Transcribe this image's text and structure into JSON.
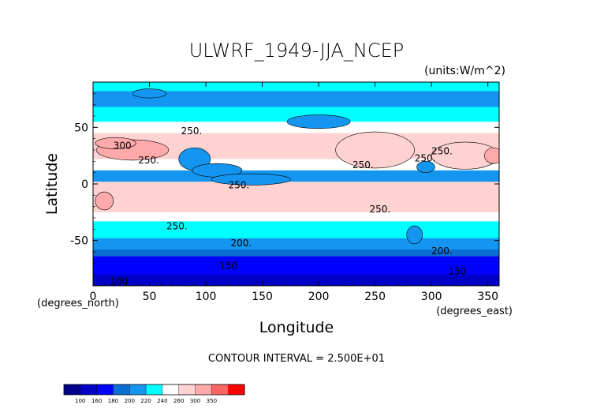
{
  "chart_data": {
    "type": "heatmap",
    "title": "ULWRF_1949-JJA_NCEP",
    "units": "(units:W/m^2)",
    "xlabel": "Longitude",
    "ylabel": "Latitude",
    "x_unit_label": "(degrees_east)",
    "y_unit_label": "(degrees_north)",
    "xlim": [
      0,
      360
    ],
    "ylim": [
      -90,
      90
    ],
    "x_ticks": [
      0,
      50,
      100,
      150,
      200,
      250,
      300,
      350
    ],
    "y_ticks": [
      50,
      0,
      -50
    ],
    "contour_interval_text": "CONTOUR INTERVAL = 2.500E+01",
    "contour_labels": [
      {
        "text": "300",
        "lon": 18,
        "lat": 31
      },
      {
        "text": "250.",
        "lon": 40,
        "lat": 18
      },
      {
        "text": "250.",
        "lon": 78,
        "lat": 44
      },
      {
        "text": "250.",
        "lon": 120,
        "lat": -4
      },
      {
        "text": "250.",
        "lon": 230,
        "lat": 14
      },
      {
        "text": "250.",
        "lon": 245,
        "lat": -25
      },
      {
        "text": "250.",
        "lon": 285,
        "lat": 20
      },
      {
        "text": "250.",
        "lon": 300,
        "lat": 26
      },
      {
        "text": "250.",
        "lon": 65,
        "lat": -40
      },
      {
        "text": "200.",
        "lon": 122,
        "lat": -55
      },
      {
        "text": "200.",
        "lon": 300,
        "lat": -62
      },
      {
        "text": "150",
        "lon": 112,
        "lat": -75
      },
      {
        "text": "150",
        "lon": 315,
        "lat": -80
      },
      {
        "text": "100",
        "lon": 15,
        "lat": -89
      }
    ],
    "colorbar": {
      "levels": [
        100,
        160,
        180,
        200,
        220,
        240,
        260,
        300,
        350
      ],
      "colors": [
        "#00008a",
        "#0000c8",
        "#0000ff",
        "#0a6ed2",
        "#1496f0",
        "#00ffff",
        "#ffffff",
        "#ffd2d2",
        "#ffaaaa",
        "#ff6464",
        "#ff0000"
      ]
    },
    "bands": [
      {
        "lat_from": 90,
        "lat_to": 82,
        "value": 225
      },
      {
        "lat_from": 82,
        "lat_to": 68,
        "value": 215
      },
      {
        "lat_from": 68,
        "lat_to": 55,
        "value": 232
      },
      {
        "lat_from": 55,
        "lat_to": 45,
        "value": 245
      },
      {
        "lat_from": 45,
        "lat_to": 35,
        "value": 262
      },
      {
        "lat_from": 35,
        "lat_to": 22,
        "value": 268
      },
      {
        "lat_from": 22,
        "lat_to": 12,
        "value": 240
      },
      {
        "lat_from": 12,
        "lat_to": 2,
        "value": 215
      },
      {
        "lat_from": 2,
        "lat_to": -10,
        "value": 262
      },
      {
        "lat_from": -10,
        "lat_to": -25,
        "value": 268
      },
      {
        "lat_from": -25,
        "lat_to": -33,
        "value": 250
      },
      {
        "lat_from": -33,
        "lat_to": -40,
        "value": 232
      },
      {
        "lat_from": -40,
        "lat_to": -48,
        "value": 222
      },
      {
        "lat_from": -48,
        "lat_to": -58,
        "value": 212
      },
      {
        "lat_from": -58,
        "lat_to": -64,
        "value": 196
      },
      {
        "lat_from": -64,
        "lat_to": -72,
        "value": 176
      },
      {
        "lat_from": -72,
        "lat_to": -80,
        "value": 164
      },
      {
        "lat_from": -80,
        "lat_to": -90,
        "value": 140
      }
    ],
    "features": [
      {
        "lon": 35,
        "lat": 30,
        "rlon": 32,
        "rlat": 9,
        "value": 305
      },
      {
        "lon": 20,
        "lat": 36,
        "rlon": 18,
        "rlat": 5,
        "value": 315
      },
      {
        "lon": 90,
        "lat": 22,
        "rlon": 14,
        "rlat": 10,
        "value": 200
      },
      {
        "lon": 110,
        "lat": 12,
        "rlon": 22,
        "rlat": 6,
        "value": 218
      },
      {
        "lon": 250,
        "lat": 30,
        "rlon": 35,
        "rlat": 16,
        "value": 272
      },
      {
        "lon": 330,
        "lat": 25,
        "rlon": 30,
        "rlat": 12,
        "value": 275
      },
      {
        "lon": 355,
        "lat": 25,
        "rlon": 8,
        "rlat": 7,
        "value": 315
      },
      {
        "lon": 10,
        "lat": -15,
        "rlon": 8,
        "rlat": 8,
        "value": 305
      },
      {
        "lon": 200,
        "lat": 55,
        "rlon": 28,
        "rlat": 6,
        "value": 200
      },
      {
        "lon": 140,
        "lat": 4,
        "rlon": 35,
        "rlat": 5,
        "value": 205
      },
      {
        "lon": 295,
        "lat": 15,
        "rlon": 8,
        "rlat": 5,
        "value": 205
      },
      {
        "lon": 285,
        "lat": -45,
        "rlon": 7,
        "rlat": 8,
        "value": 205
      },
      {
        "lon": 50,
        "lat": 80,
        "rlon": 15,
        "rlat": 4,
        "value": 200
      }
    ]
  }
}
